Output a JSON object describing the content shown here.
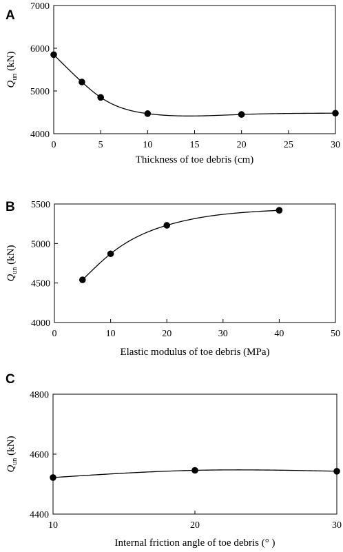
{
  "chart_data": [
    {
      "type": "line",
      "panel": "A",
      "ylabel": {
        "main": "Q",
        "sub": "un",
        "unit": " (kN)"
      },
      "xlabel": "Thickness of toe debris (cm)",
      "xlim": [
        0,
        30
      ],
      "ylim": [
        4000,
        7000
      ],
      "xticks": [
        "0",
        "5",
        "10",
        "15",
        "20",
        "25",
        "30"
      ],
      "yticks": [
        "4000",
        "5000",
        "6000",
        "7000"
      ],
      "x": [
        0,
        3,
        5,
        10,
        20,
        30
      ],
      "y": [
        5850,
        5210,
        4850,
        4470,
        4450,
        4480
      ]
    },
    {
      "type": "line",
      "panel": "B",
      "ylabel": {
        "main": "Q",
        "sub": "un",
        "unit": " (kN)"
      },
      "xlabel": "Elastic modulus of toe debris (MPa)",
      "xlim": [
        0,
        50
      ],
      "ylim": [
        4000,
        5500
      ],
      "xticks": [
        "0",
        "10",
        "20",
        "30",
        "40",
        "50"
      ],
      "yticks": [
        "4000",
        "4500",
        "5000",
        "5500"
      ],
      "x": [
        5,
        10,
        20,
        40
      ],
      "y": [
        4540,
        4870,
        5230,
        5420
      ]
    },
    {
      "type": "line",
      "panel": "C",
      "ylabel": {
        "main": "Q",
        "sub": "un",
        "unit": " (kN)"
      },
      "xlabel": "Internal friction angle of  toe debris (° )",
      "xlim": [
        10,
        30
      ],
      "ylim": [
        4400,
        4800
      ],
      "xticks": [
        "10",
        "20",
        "30"
      ],
      "yticks": [
        "4400",
        "4600",
        "4800"
      ],
      "x": [
        10,
        20,
        30
      ],
      "y": [
        4522,
        4546,
        4543
      ]
    }
  ]
}
